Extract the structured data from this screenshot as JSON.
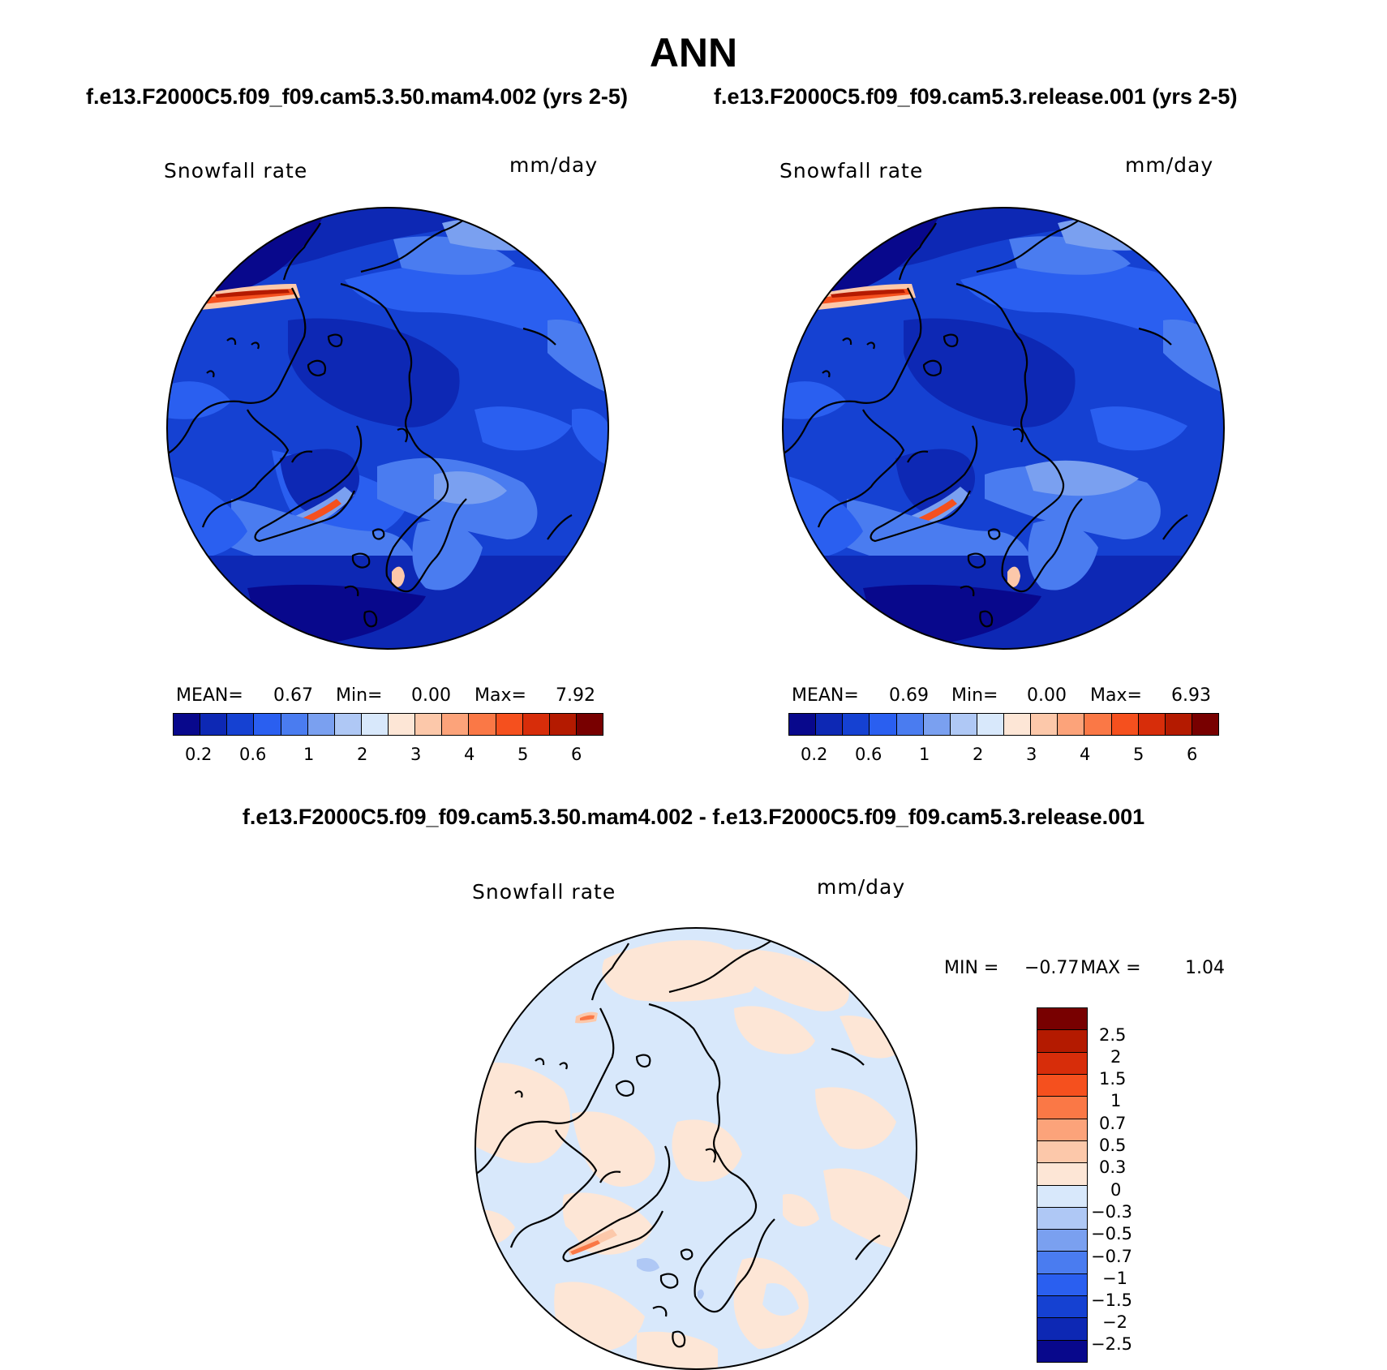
{
  "title": "ANN",
  "case_left": "f.e13.F2000C5.f09_f09.cam5.3.50.mam4.002 (yrs 2-5)",
  "case_right": "f.e13.F2000C5.f09_f09.cam5.3.release.001 (yrs 2-5)",
  "diff_title": "f.e13.F2000C5.f09_f09.cam5.3.50.mam4.002 - f.e13.F2000C5.f09_f09.cam5.3.release.001",
  "panels": {
    "left": {
      "variable": "Snowfall rate",
      "units": "mm/day",
      "mean_label": "MEAN=",
      "mean": "0.67",
      "min_label": "Min=",
      "min": "0.00",
      "max_label": "Max=",
      "max": "7.92"
    },
    "right": {
      "variable": "Snowfall rate",
      "units": "mm/day",
      "mean_label": "MEAN=",
      "mean": "0.69",
      "min_label": "Min=",
      "min": "0.00",
      "max_label": "Max=",
      "max": "6.93"
    },
    "diff": {
      "variable": "Snowfall rate",
      "units": "mm/day",
      "min_label": "MIN =",
      "min": "−0.77",
      "max_label": "MAX =",
      "max": "1.04"
    }
  },
  "colorbar_abs": {
    "colors": [
      "#08088c",
      "#0d28b4",
      "#1541d2",
      "#2a5ff0",
      "#4a7cf0",
      "#7aa0f0",
      "#afc8f5",
      "#d8e8fb",
      "#fde6d6",
      "#fcc8aa",
      "#fca37a",
      "#fa7846",
      "#f5501e",
      "#d72d0a",
      "#b41a00",
      "#780000"
    ],
    "ticks": [
      "0.2",
      "0.6",
      "1",
      "2",
      "3",
      "4",
      "5",
      "6"
    ]
  },
  "colorbar_diff": {
    "colors": [
      "#780000",
      "#b41a00",
      "#d72d0a",
      "#f5501e",
      "#fa7846",
      "#fca37a",
      "#fcc8aa",
      "#fde6d6",
      "#d8e8fb",
      "#afc8f5",
      "#7aa0f0",
      "#4a7cf0",
      "#2a5ff0",
      "#1541d2",
      "#0d28b4",
      "#08088c"
    ],
    "ticks": [
      "2.5",
      "2",
      "1.5",
      "1",
      "0.7",
      "0.5",
      "0.3",
      "0",
      "−0.3",
      "−0.5",
      "−0.7",
      "−1",
      "−1.5",
      "−2",
      "−2.5"
    ]
  }
}
